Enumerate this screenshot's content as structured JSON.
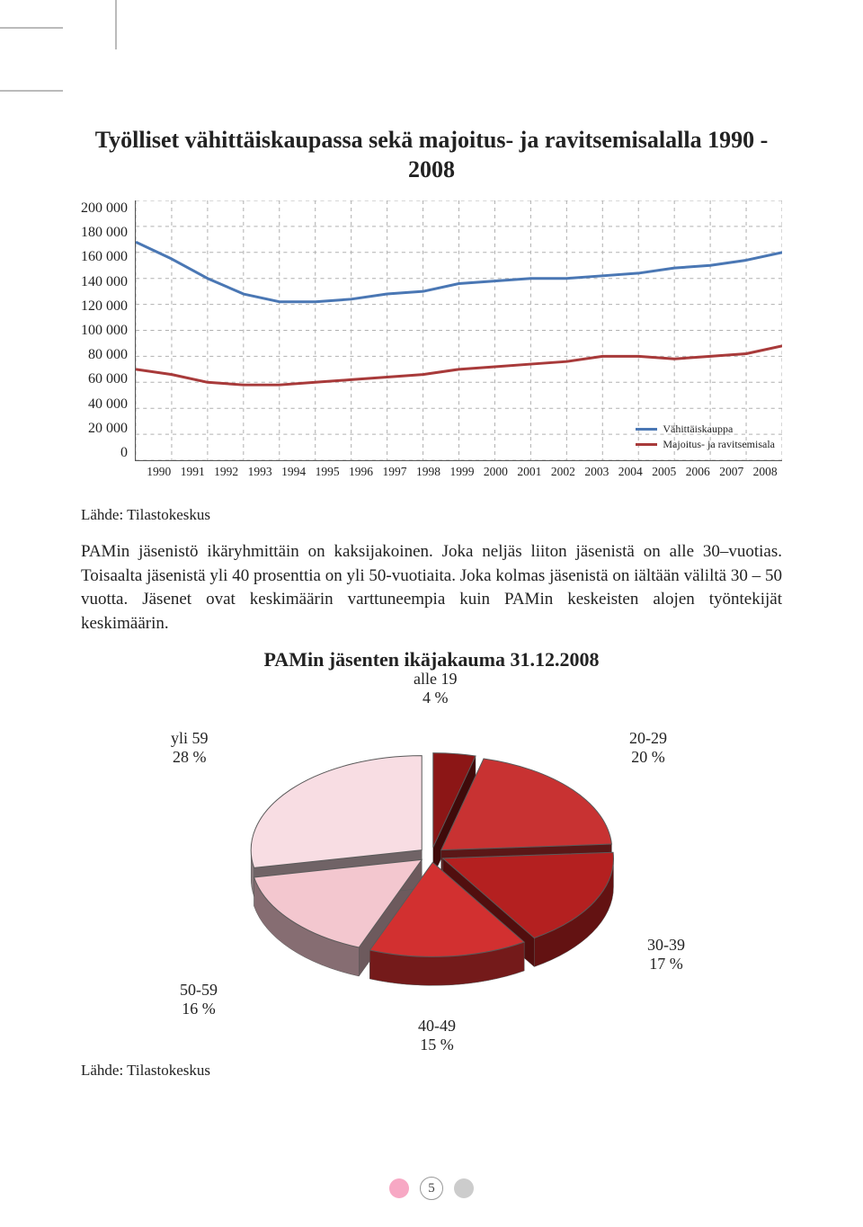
{
  "line_chart": {
    "type": "line",
    "title": "Työlliset vähittäiskaupassa sekä majoitus- ja ravitsemisalalla 1990 - 2008",
    "y_ticks": [
      "200 000",
      "180 000",
      "160 000",
      "140 000",
      "120 000",
      "100 000",
      "80 000",
      "60 000",
      "40 000",
      "20 000",
      "0"
    ],
    "ylim": [
      0,
      200000
    ],
    "ytick_step": 20000,
    "x_labels": [
      "1990",
      "1991",
      "1992",
      "1993",
      "1994",
      "1995",
      "1996",
      "1997",
      "1998",
      "1999",
      "2000",
      "2001",
      "2002",
      "2003",
      "2004",
      "2005",
      "2006",
      "2007",
      "2008"
    ],
    "grid_color": "#b0b0b0",
    "grid_dash": "4 4",
    "background_color": "#ffffff",
    "axis_color": "#555555",
    "label_fontsize": 16,
    "xlabel_fontsize": 13.5,
    "series": [
      {
        "name": "Vähittäiskauppa",
        "color": "#4a77b4",
        "stroke_width": 3,
        "values": [
          168000,
          155000,
          140000,
          128000,
          122000,
          122000,
          124000,
          128000,
          130000,
          136000,
          138000,
          140000,
          140000,
          142000,
          144000,
          148000,
          150000,
          154000,
          160000
        ]
      },
      {
        "name": "Majoitus- ja ravitsemisala",
        "color": "#a83a3a",
        "stroke_width": 3,
        "values": [
          70000,
          66000,
          60000,
          58000,
          58000,
          60000,
          62000,
          64000,
          66000,
          70000,
          72000,
          74000,
          76000,
          80000,
          80000,
          78000,
          80000,
          82000,
          88000
        ]
      }
    ],
    "legend": {
      "position": "bottom-right",
      "fontsize": 12,
      "items": [
        "Vähittäiskauppa",
        "Majoitus- ja ravitsemisala"
      ]
    },
    "source": "Lähde: Tilastokeskus"
  },
  "body_text": "PAMin jäsenistö ikäryhmittäin on kaksijakoinen. Joka neljäs liiton jäsenistä on alle 30–vuotias. Toisaalta jäsenistä yli 40 prosenttia on yli 50-vuotiaita. Joka kolmas jäsenistä on iältään väliltä 30 – 50 vuotta. Jäsenet ovat keskimäärin varttuneempia kuin PAMin keskeisten alojen työntekijät keskimäärin.",
  "pie_chart": {
    "type": "pie-3d-exploded",
    "title": "PAMin jäsenten ikäjakauma 31.12.2008",
    "title_fontsize": 22,
    "background_color": "#ffffff",
    "depth_shade": "#3a1414",
    "stroke_color": "#5a5a5a",
    "slices": [
      {
        "label_top": "alle 19",
        "label_bottom": "4 %",
        "value": 4,
        "fill": "#8c1616",
        "explode": 14
      },
      {
        "label_top": "20-29",
        "label_bottom": "20 %",
        "value": 20,
        "fill": "#c83232",
        "explode": 14
      },
      {
        "label_top": "30-39",
        "label_bottom": "17 %",
        "value": 17,
        "fill": "#b42020",
        "explode": 14
      },
      {
        "label_top": "40-49",
        "label_bottom": "15 %",
        "value": 15,
        "fill": "#d23030",
        "explode": 14
      },
      {
        "label_top": "50-59",
        "label_bottom": "16 %",
        "value": 16,
        "fill": "#f3c7cf",
        "explode": 14
      },
      {
        "label_top": "yli 59",
        "label_bottom": "28 %",
        "value": 28,
        "fill": "#f8dde3",
        "explode": 14
      }
    ],
    "label_fontsize": 18,
    "source": "Lähde: Tilastokeskus"
  },
  "footer": {
    "page_number": "5",
    "dot_left_color": "#f7a8c4",
    "dot_right_color": "#cccccc"
  }
}
